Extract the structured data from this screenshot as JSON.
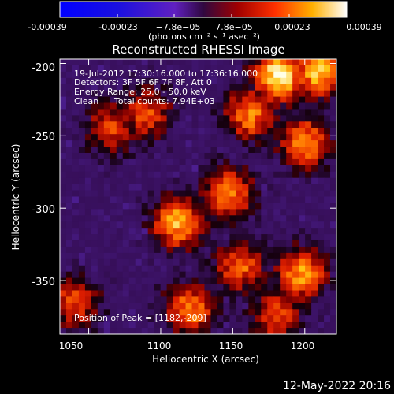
{
  "colorbar": {
    "ticks": [
      "-0.00039",
      "-0.00023",
      "−7.8e−05",
      "7.8e−05",
      "0.00023",
      "0.00039"
    ],
    "unit_label": "(photons cm⁻² s⁻¹ asec⁻²)",
    "range": [
      -0.00039,
      0.00039
    ]
  },
  "chart_data": {
    "type": "heatmap",
    "title": "Reconstructed RHESSI Image",
    "xlabel": "Heliocentric X (arcsec)",
    "ylabel": "Heliocentric Y (arcsec)",
    "xlim": [
      1030,
      1222
    ],
    "ylim": [
      -387,
      -197
    ],
    "xticks": [
      "1050",
      "1100",
      "1150",
      "1200"
    ],
    "yticks": [
      "-200",
      "-250",
      "-300",
      "-350"
    ],
    "xtick_values": [
      1050,
      1100,
      1150,
      1200
    ],
    "ytick_values": [
      -200,
      -250,
      -300,
      -350
    ],
    "grid": false,
    "annotations": {
      "time_range": "19-Jul-2012 17:30:16.000 to 17:36:16.000",
      "detectors": "Detectors: 3F 5F 6F 7F 8F, Att 0",
      "energy": "Energy Range: 25.0 - 50.0 keV",
      "clean_label": "Clean",
      "total_counts": "Total counts: 7.94E+03",
      "peak": "Position of Peak = [1182,-209]"
    },
    "bright_regions": [
      {
        "x": 1182,
        "y": -209,
        "level": 1.0
      },
      {
        "x": 1210,
        "y": -205,
        "level": 0.9
      },
      {
        "x": 1200,
        "y": -255,
        "level": 0.75
      },
      {
        "x": 1162,
        "y": -235,
        "level": 0.72
      },
      {
        "x": 1147,
        "y": -290,
        "level": 0.72
      },
      {
        "x": 1112,
        "y": -310,
        "level": 0.82
      },
      {
        "x": 1065,
        "y": -245,
        "level": 0.55
      },
      {
        "x": 1090,
        "y": -235,
        "level": 0.6
      },
      {
        "x": 1198,
        "y": -345,
        "level": 0.78
      },
      {
        "x": 1155,
        "y": -340,
        "level": 0.65
      },
      {
        "x": 1120,
        "y": -370,
        "level": 0.72
      },
      {
        "x": 1180,
        "y": -375,
        "level": 0.6
      },
      {
        "x": 1040,
        "y": -365,
        "level": 0.6
      }
    ]
  },
  "footer": {
    "date": "12-May-2022 20:16"
  }
}
